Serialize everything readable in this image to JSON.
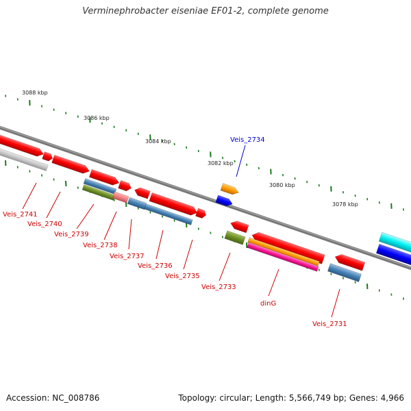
{
  "title": "Verminephrobacter eiseniae EF01-2, complete genome",
  "footer": {
    "accession": "Accession: NC_008786",
    "topology": "Topology: circular; Length: 5,566,749 bp; Genes: 4,966"
  },
  "scale_labels": [
    "3088 kbp",
    "3086 kbp",
    "3084 kbp",
    "3082 kbp",
    "3080 kbp",
    "3078 kbp"
  ],
  "colors": {
    "backbone": "#777777",
    "tick": "#1a7a1a",
    "red": "#ff0000",
    "blue_label": "#0000cc",
    "red_label": "#cc0000"
  },
  "gene_labels": [
    {
      "name": "Veis_2741",
      "color": "#cc0000"
    },
    {
      "name": "Veis_2740",
      "color": "#cc0000"
    },
    {
      "name": "Veis_2739",
      "color": "#cc0000"
    },
    {
      "name": "Veis_2738",
      "color": "#cc0000"
    },
    {
      "name": "Veis_2737",
      "color": "#cc0000"
    },
    {
      "name": "Veis_2736",
      "color": "#cc0000"
    },
    {
      "name": "Veis_2735",
      "color": "#cc0000"
    },
    {
      "name": "Veis_2734",
      "color": "#0000cc"
    },
    {
      "name": "Veis_2733",
      "color": "#cc0000"
    },
    {
      "name": "dinG",
      "color": "#cc0000"
    },
    {
      "name": "Veis_2731",
      "color": "#cc0000"
    }
  ]
}
